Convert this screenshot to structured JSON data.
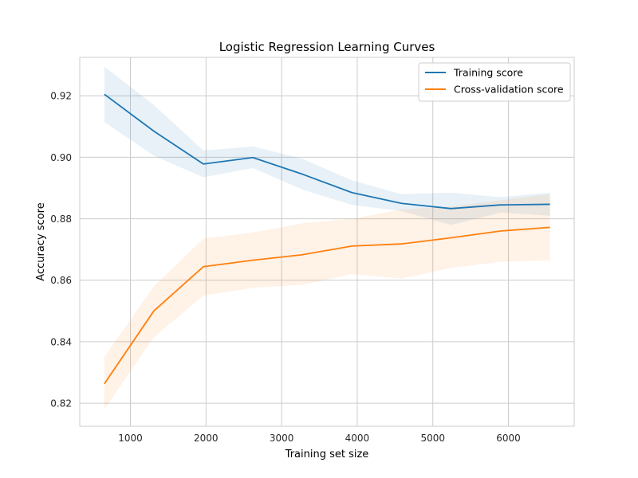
{
  "chart_data": {
    "type": "line",
    "title": "Logistic Regression Learning Curves",
    "xlabel": "Training set size",
    "ylabel": "Accuracy score",
    "xlim": [
      330,
      6870
    ],
    "ylim": [
      0.8125,
      0.9325
    ],
    "xticks": [
      1000,
      2000,
      3000,
      4000,
      5000,
      6000
    ],
    "xtick_labels": [
      "1000",
      "2000",
      "3000",
      "4000",
      "5000",
      "6000"
    ],
    "yticks": [
      0.82,
      0.84,
      0.86,
      0.88,
      0.9,
      0.92
    ],
    "ytick_labels": [
      "0.82",
      "0.84",
      "0.86",
      "0.88",
      "0.90",
      "0.92"
    ],
    "grid": true,
    "legend_position": "top-right",
    "x": [
      655,
      1310,
      1965,
      2620,
      3275,
      3930,
      4585,
      5240,
      5895,
      6550
    ],
    "series": [
      {
        "name": "Training score",
        "color": "#1f77b4",
        "values": [
          0.9205,
          0.9085,
          0.8978,
          0.8999,
          0.8945,
          0.8885,
          0.885,
          0.8833,
          0.8845,
          0.8847
        ],
        "lower": [
          0.9115,
          0.9005,
          0.8935,
          0.8965,
          0.8895,
          0.8845,
          0.8825,
          0.878,
          0.882,
          0.881
        ],
        "upper": [
          0.9295,
          0.917,
          0.9022,
          0.9035,
          0.8995,
          0.8925,
          0.888,
          0.8885,
          0.887,
          0.8885
        ],
        "band_color": "#1f77b4"
      },
      {
        "name": "Cross-validation score",
        "color": "#ff7f0e",
        "values": [
          0.8263,
          0.85,
          0.8644,
          0.8665,
          0.8683,
          0.8711,
          0.8718,
          0.8738,
          0.876,
          0.8772
        ],
        "lower": [
          0.818,
          0.8415,
          0.855,
          0.8575,
          0.8585,
          0.862,
          0.8605,
          0.864,
          0.866,
          0.8665
        ],
        "upper": [
          0.835,
          0.858,
          0.8735,
          0.8755,
          0.8785,
          0.88,
          0.883,
          0.884,
          0.886,
          0.888
        ],
        "band_color": "#ff7f0e"
      }
    ]
  }
}
